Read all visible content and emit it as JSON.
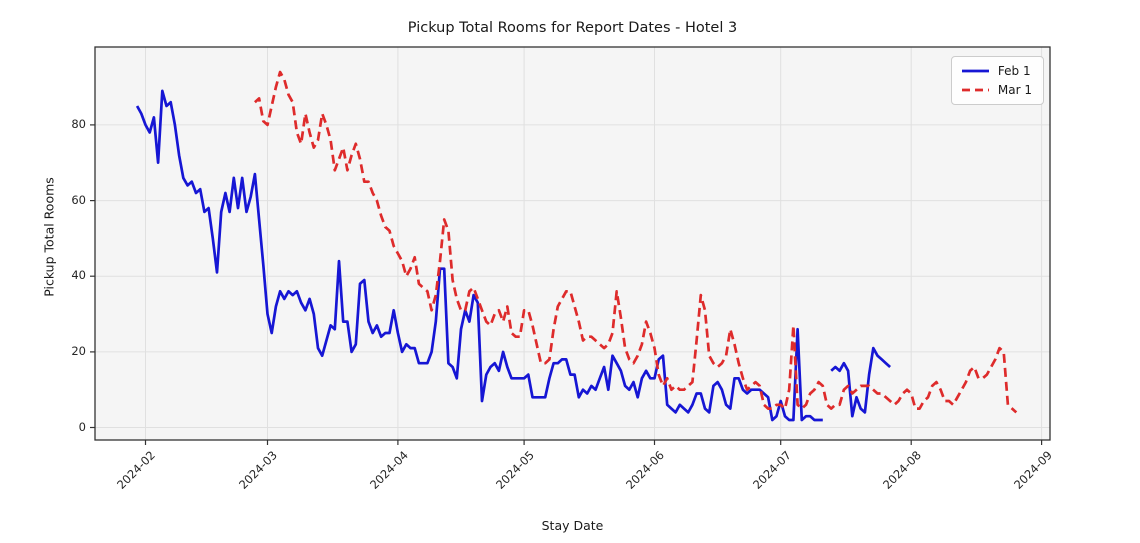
{
  "figure": {
    "title": "Pickup Total Rooms for Report Dates - Hotel 3",
    "xlabel": "Stay Date",
    "ylabel": "Pickup Total Rooms"
  },
  "legend": {
    "position": "upper right",
    "items": [
      {
        "label": "Feb 1",
        "line_style": "solid",
        "color": "#1616d4"
      },
      {
        "label": "Mar 1",
        "line_style": "dashed",
        "color": "#de2b2b"
      }
    ]
  },
  "chart_data": {
    "type": "line",
    "title": "Pickup Total Rooms for Report Dates - Hotel 3",
    "xlabel": "Stay Date",
    "ylabel": "Pickup Total Rooms",
    "grid": true,
    "legend_position": "upper right",
    "plot_bg": "#f5f5f5",
    "grid_color": "#e0e0e0",
    "spine_color": "#333333",
    "ylim": [
      -3.3,
      100.6
    ],
    "xlim": [
      "2024-01-20",
      "2024-09-03"
    ],
    "y_ticks": [
      0,
      20,
      40,
      60,
      80
    ],
    "x_tick_dates": [
      "2024-02-01",
      "2024-03-01",
      "2024-04-01",
      "2024-05-01",
      "2024-06-01",
      "2024-07-01",
      "2024-08-01",
      "2024-09-01"
    ],
    "x_tick_labels": [
      "2024-02",
      "2024-03",
      "2024-04",
      "2024-05",
      "2024-06",
      "2024-07",
      "2024-08",
      "2024-09"
    ],
    "frequency": "daily",
    "series": [
      {
        "name": "Feb 1",
        "color": "#1616d4",
        "dash": "solid",
        "start_date": "2024-01-30",
        "values": [
          85,
          83,
          80,
          78,
          82,
          70,
          89,
          85,
          86,
          80,
          72,
          66,
          64,
          65,
          62,
          63,
          57,
          58,
          50,
          41,
          57,
          62,
          57,
          66,
          58,
          66,
          57,
          61,
          67,
          55,
          43,
          30,
          25,
          32,
          36,
          34,
          36,
          35,
          36,
          33,
          31,
          34,
          30,
          21,
          19,
          23,
          27,
          26,
          44,
          28,
          28,
          20,
          22,
          38,
          39,
          28,
          25,
          27,
          24,
          25,
          25,
          31,
          25,
          20,
          22,
          21,
          21,
          17,
          17,
          17,
          20,
          28,
          42,
          42,
          17,
          16,
          13,
          26,
          31,
          28,
          35,
          33,
          7,
          14,
          16,
          17,
          15,
          20,
          16,
          13,
          13,
          13,
          13,
          14,
          8,
          8,
          8,
          8,
          13,
          17,
          17,
          18,
          18,
          14,
          14,
          8,
          10,
          9,
          11,
          10,
          13,
          16,
          10,
          19,
          17,
          15,
          11,
          10,
          12,
          8,
          13,
          15,
          13,
          13,
          18,
          19,
          6,
          5,
          4,
          6,
          5,
          4,
          6,
          9,
          9,
          5,
          4,
          11,
          12,
          10,
          6,
          5,
          13,
          13,
          10,
          9,
          10,
          10,
          10,
          9,
          8,
          2,
          3,
          7,
          3,
          2,
          2,
          26,
          2,
          3,
          3,
          2,
          2,
          2,
          null,
          15,
          16,
          15,
          17,
          15,
          3,
          8,
          5,
          4,
          14,
          21,
          19,
          18,
          17,
          16
        ]
      },
      {
        "name": "Mar 1",
        "color": "#de2b2b",
        "dash": "dashed",
        "start_date": "2024-02-27",
        "values": [
          86,
          87,
          81,
          80,
          85,
          90,
          94,
          92,
          88,
          86,
          78,
          75,
          83,
          78,
          74,
          76,
          83,
          80,
          76,
          68,
          71,
          74,
          68,
          72,
          75,
          71,
          65,
          65,
          62,
          60,
          56,
          53,
          52,
          48,
          46,
          44,
          40,
          42,
          45,
          38,
          37,
          36,
          31,
          35,
          44,
          55,
          52,
          39,
          34,
          31,
          31,
          36,
          37,
          34,
          31,
          28,
          27,
          30,
          31,
          28,
          32,
          25,
          24,
          24,
          31,
          31,
          27,
          22,
          17,
          17,
          18,
          26,
          32,
          34,
          36,
          36,
          32,
          28,
          23,
          24,
          24,
          23,
          22,
          21,
          22,
          25,
          36,
          29,
          21,
          18,
          17,
          19,
          22,
          28,
          25,
          21,
          14,
          11,
          13,
          10,
          11,
          10,
          10,
          11,
          12,
          23,
          35,
          31,
          19,
          17,
          16,
          17,
          19,
          26,
          22,
          17,
          13,
          10,
          11,
          12,
          11,
          6,
          5,
          5,
          6,
          6,
          5,
          10,
          27,
          6,
          5,
          6,
          9,
          10,
          12,
          11,
          6,
          5,
          6,
          6,
          10,
          11,
          9,
          10,
          11,
          11,
          11,
          10,
          9,
          9,
          8,
          7,
          6,
          7,
          9,
          10,
          9,
          5,
          5,
          7,
          8,
          11,
          12,
          10,
          7,
          7,
          6,
          8,
          10,
          12,
          15,
          16,
          13,
          13,
          14,
          16,
          18,
          21,
          20,
          6,
          5,
          4
        ]
      }
    ]
  }
}
